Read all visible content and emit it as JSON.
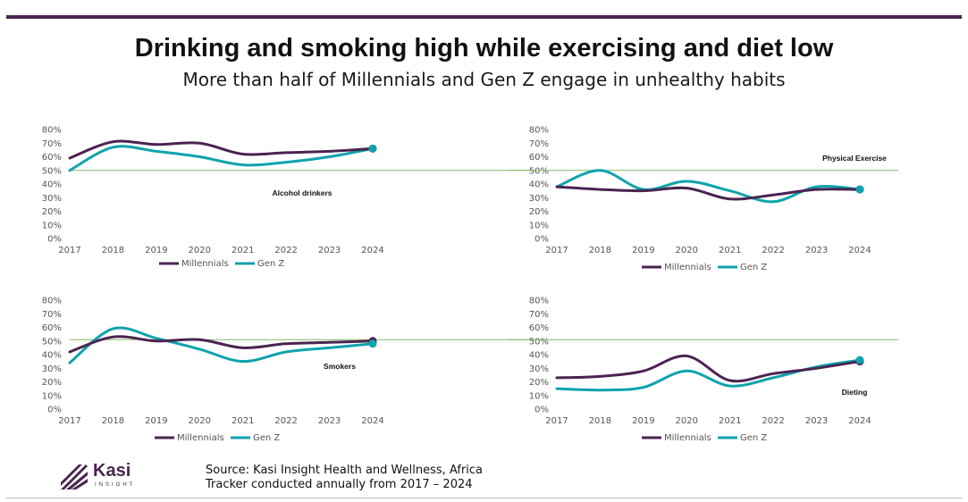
{
  "header": {
    "title": "Drinking and smoking high while exercising and diet low",
    "subtitle": "More than half of Millennials and Gen Z engage in unhealthy habits"
  },
  "footer": {
    "source_line1": "Source: Kasi Insight Health and Wellness, Africa",
    "source_line2": "Tracker conducted annually from 2017 – 2024",
    "logo_name": "Kasi",
    "logo_tagline": "INSIGHT"
  },
  "colors": {
    "millennials": "#4a2450",
    "genz": "#0fa3ad",
    "reference": "#8cb66b",
    "bar": "#4a2450"
  },
  "chart_data": [
    {
      "type": "line",
      "label": "Alcohol drinkers",
      "x": [
        "2017",
        "2018",
        "2019",
        "2020",
        "2021",
        "2022",
        "2023",
        "2024"
      ],
      "yticks": [
        "0%",
        "10%",
        "20%",
        "30%",
        "40%",
        "50%",
        "60%",
        "70%",
        "80%"
      ],
      "ylim": [
        0,
        80
      ],
      "reference_line": 50,
      "series": [
        {
          "name": "Millennials",
          "values": [
            59,
            71,
            69,
            70,
            62,
            63,
            64,
            66
          ]
        },
        {
          "name": "Gen Z",
          "values": [
            50,
            67,
            64,
            60,
            54,
            56,
            60,
            66
          ]
        }
      ]
    },
    {
      "type": "line",
      "label": "Physical Exercise",
      "x": [
        "2017",
        "2018",
        "2019",
        "2020",
        "2021",
        "2022",
        "2023",
        "2024"
      ],
      "yticks": [
        "0%",
        "10%",
        "20%",
        "30%",
        "40%",
        "50%",
        "60%",
        "70%",
        "80%"
      ],
      "ylim": [
        0,
        80
      ],
      "reference_line": 50,
      "series": [
        {
          "name": "Millennials",
          "values": [
            38,
            36,
            35,
            37,
            29,
            32,
            36,
            36
          ]
        },
        {
          "name": "Gen Z",
          "values": [
            38,
            50,
            36,
            42,
            35,
            27,
            38,
            36
          ]
        }
      ]
    },
    {
      "type": "line",
      "label": "Smokers",
      "x": [
        "2017",
        "2018",
        "2019",
        "2020",
        "2021",
        "2022",
        "2023",
        "2024"
      ],
      "yticks": [
        "0%",
        "10%",
        "20%",
        "30%",
        "40%",
        "50%",
        "60%",
        "70%",
        "80%"
      ],
      "ylim": [
        0,
        80
      ],
      "reference_line": 51,
      "series": [
        {
          "name": "Millennials",
          "values": [
            42,
            53,
            50,
            51,
            45,
            48,
            49,
            50
          ]
        },
        {
          "name": "Gen Z",
          "values": [
            34,
            59,
            52,
            44,
            35,
            42,
            45,
            48
          ]
        }
      ]
    },
    {
      "type": "line",
      "label": "Dieting",
      "x": [
        "2017",
        "2018",
        "2019",
        "2020",
        "2021",
        "2022",
        "2023",
        "2024"
      ],
      "yticks": [
        "0%",
        "10%",
        "20%",
        "30%",
        "40%",
        "50%",
        "60%",
        "70%",
        "80%"
      ],
      "ylim": [
        0,
        80
      ],
      "reference_line": 51,
      "series": [
        {
          "name": "Millennials",
          "values": [
            23,
            24,
            28,
            39,
            21,
            26,
            30,
            35
          ]
        },
        {
          "name": "Gen Z",
          "values": [
            15,
            14,
            16,
            28,
            17,
            23,
            31,
            36
          ]
        }
      ]
    }
  ]
}
